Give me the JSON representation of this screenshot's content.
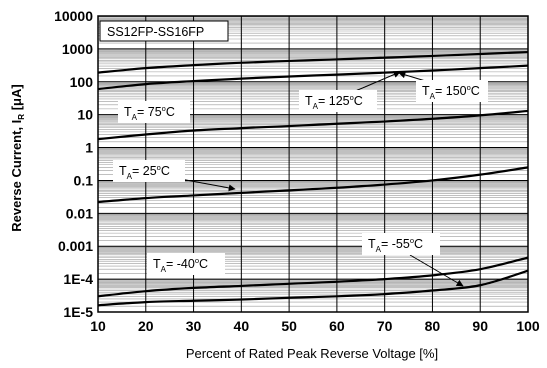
{
  "chart_data": {
    "type": "line",
    "title": "SS12FP-SS16FP",
    "xlabel": "Percent of Rated Peak Reverse Voltage [%]",
    "ylabel": "Reverse Current, I_R [μA]",
    "ylabel_main": "Reverse Current, I",
    "ylabel_sub": "R",
    "ylabel_unit": " [μA]",
    "x_scale": "linear",
    "y_scale": "log",
    "xlim": [
      10,
      100
    ],
    "ylim": [
      1e-05,
      10000
    ],
    "grid": true,
    "x_ticks": [
      "10",
      "20",
      "30",
      "40",
      "50",
      "60",
      "70",
      "80",
      "90",
      "100"
    ],
    "y_ticks": [
      "10000",
      "1000",
      "100",
      "10",
      "1",
      "0.1",
      "0.01",
      "0.001",
      "1E-4",
      "1E-5"
    ],
    "x": [
      10,
      20,
      30,
      40,
      50,
      60,
      70,
      80,
      90,
      100
    ],
    "series": [
      {
        "name": "TA=150°C",
        "values": [
          190,
          260,
          320,
          380,
          430,
          480,
          540,
          610,
          700,
          800
        ]
      },
      {
        "name": "TA=125°C",
        "values": [
          60,
          85,
          105,
          125,
          145,
          165,
          190,
          220,
          260,
          310
        ]
      },
      {
        "name": "TA=75°C",
        "values": [
          1.8,
          2.5,
          3.3,
          3.9,
          4.5,
          5.3,
          6.2,
          7.5,
          9.5,
          13
        ]
      },
      {
        "name": "TA=25°C",
        "values": [
          0.022,
          0.029,
          0.035,
          0.042,
          0.05,
          0.06,
          0.075,
          0.1,
          0.15,
          0.25
        ]
      },
      {
        "name": "TA=-40°C",
        "values": [
          3e-05,
          4.3e-05,
          5.4e-05,
          6.2e-05,
          7.2e-05,
          8.3e-05,
          0.0001,
          0.00013,
          0.0002,
          0.00045
        ]
      },
      {
        "name": "TA=-55°C",
        "values": [
          1.6e-05,
          2e-05,
          2.2e-05,
          2.4e-05,
          2.7e-05,
          3e-05,
          3.5e-05,
          4.5e-05,
          6.5e-05,
          0.00018
        ]
      }
    ],
    "annotations": [
      {
        "pre": "T",
        "sub": "A",
        "post1": "= 150",
        "sup": "o",
        "post2": "C"
      },
      {
        "pre": "T",
        "sub": "A",
        "post1": "= 125",
        "sup": "o",
        "post2": "C"
      },
      {
        "pre": "T",
        "sub": "A",
        "post1": "= 75",
        "sup": "o",
        "post2": "C"
      },
      {
        "pre": "T",
        "sub": "A",
        "post1": "= 25",
        "sup": "o",
        "post2": "C"
      },
      {
        "pre": "T",
        "sub": "A",
        "post1": "= -40",
        "sup": "o",
        "post2": "C"
      },
      {
        "pre": "T",
        "sub": "A",
        "post1": "= -55",
        "sup": "o",
        "post2": "C"
      }
    ],
    "colors": {
      "curve": "#000000",
      "grid_major": "#000000",
      "grid_minor": "#9a9a9a",
      "background": "#ffffff"
    }
  }
}
